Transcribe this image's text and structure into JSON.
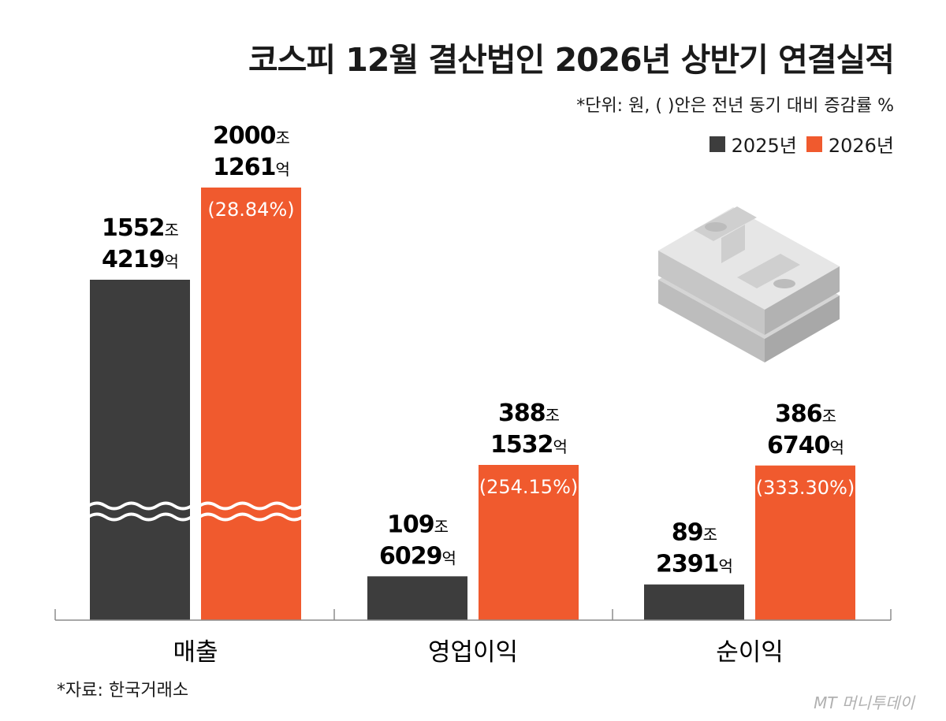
{
  "title": "코스피 12월 결산법인 2026년 상반기 연결실적",
  "subtitle": "*단위: 원, ( )안은 전년 동기 대비 증감률 %",
  "source": "*자료: 한국거래소",
  "logo_text": "MT 머니투데이",
  "colors": {
    "2025": "#3d3d3d",
    "2026": "#f05a2e"
  },
  "chart_data": {
    "type": "bar",
    "categories": [
      "매출",
      "영업이익",
      "순이익"
    ],
    "series": [
      {
        "name": "2025년",
        "values": [
          15524219,
          1096029,
          892391
        ]
      },
      {
        "name": "2026년",
        "values": [
          20001261,
          3881532,
          3866740
        ]
      }
    ],
    "value_unit_note": "억원",
    "axis_break": {
      "category": "매출"
    },
    "labels": {
      "2025년": [
        {
          "jo": "1552",
          "jo_unit": "조",
          "eok": "4219",
          "eok_unit": "억"
        },
        {
          "jo": "109",
          "jo_unit": "조",
          "eok": "6029",
          "eok_unit": "억"
        },
        {
          "jo": "89",
          "jo_unit": "조",
          "eok": "2391",
          "eok_unit": "억"
        }
      ],
      "2026년": [
        {
          "jo": "2000",
          "jo_unit": "조",
          "eok": "1261",
          "eok_unit": "억",
          "pct": "(28.84%)"
        },
        {
          "jo": "388",
          "jo_unit": "조",
          "eok": "1532",
          "eok_unit": "억",
          "pct": "(254.15%)"
        },
        {
          "jo": "386",
          "jo_unit": "조",
          "eok": "6740",
          "eok_unit": "억",
          "pct": "(333.30%)"
        }
      ]
    },
    "legend_position": "top-right",
    "grid": false
  }
}
